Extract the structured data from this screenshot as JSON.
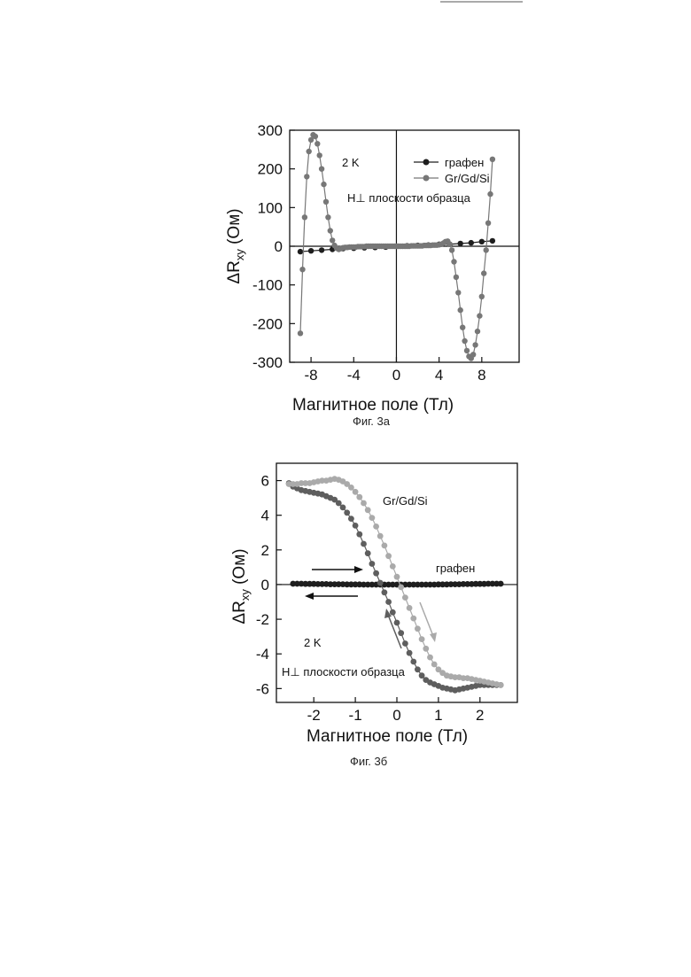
{
  "chart_data": [
    {
      "type": "line",
      "figure_label": "Фиг. 3а",
      "xlabel": "Магнитное поле (Тл)",
      "ylabel_main": "ΔR",
      "ylabel_sub": "xy",
      "ylabel_unit": " (Ом)",
      "xlim": [
        -10,
        11.5
      ],
      "ylim": [
        -300,
        300
      ],
      "xticks": [
        -8,
        -4,
        0,
        4,
        8
      ],
      "xtick_labels": [
        "-8",
        "-4",
        "0",
        "4",
        "8"
      ],
      "yticks": [
        -300,
        -200,
        -100,
        0,
        100,
        200,
        300
      ],
      "ytick_labels": [
        "-300",
        "-200",
        "-100",
        "0",
        "100",
        "200",
        "300"
      ],
      "annotations": [
        "2 K",
        "H⊥ плоскости образца"
      ],
      "legend_position": "top-right",
      "series": [
        {
          "name": "графен",
          "color": "#1e1e1e",
          "x": [
            -9,
            -8,
            -7,
            -6,
            -5,
            -4,
            -3,
            -2,
            -1,
            0,
            1,
            2,
            3,
            4,
            5,
            6,
            7,
            8,
            9
          ],
          "y": [
            -14,
            -12,
            -10,
            -8,
            -6,
            -5,
            -4,
            -3,
            -2,
            0,
            1,
            2,
            3,
            5,
            5,
            7,
            9,
            12,
            14
          ]
        },
        {
          "name": "Gr/Gd/Si",
          "color": "#777777",
          "x": [
            -9.0,
            -8.8,
            -8.6,
            -8.4,
            -8.2,
            -8.0,
            -7.8,
            -7.6,
            -7.4,
            -7.2,
            -7.0,
            -6.8,
            -6.6,
            -6.4,
            -6.2,
            -6.0,
            -5.8,
            -5.6,
            -5.4,
            -5.2,
            -5.0,
            -4.8,
            -4.6,
            -4.4,
            -4.2,
            -4.0,
            -3.8,
            -3.6,
            -3.4,
            -3.2,
            -3.0,
            -2.8,
            -2.6,
            -2.4,
            -2.2,
            -2.0,
            -1.8,
            -1.6,
            -1.4,
            -1.2,
            -1.0,
            -0.8,
            -0.6,
            -0.4,
            -0.2,
            0.0,
            0.2,
            0.4,
            0.6,
            0.8,
            1.0,
            1.2,
            1.4,
            1.6,
            1.8,
            2.0,
            2.2,
            2.4,
            2.6,
            2.8,
            3.0,
            3.2,
            3.4,
            3.6,
            3.8,
            4.0,
            4.2,
            4.4,
            4.6,
            4.8,
            5.0,
            5.2,
            5.4,
            5.6,
            5.8,
            6.0,
            6.2,
            6.4,
            6.6,
            6.8,
            7.0,
            7.2,
            7.4,
            7.6,
            7.8,
            8.0,
            8.2,
            8.4,
            8.6,
            8.8,
            9.0
          ],
          "y": [
            -225,
            -60,
            75,
            180,
            245,
            275,
            288,
            284,
            265,
            235,
            200,
            160,
            115,
            75,
            40,
            15,
            2,
            -5,
            -8,
            -6,
            -4,
            -3,
            -3,
            -2,
            -2,
            -2,
            -2,
            -1,
            -1,
            -1,
            -1,
            0,
            0,
            0,
            0,
            0,
            0,
            0,
            0,
            0,
            0,
            0,
            0,
            0,
            0,
            0,
            0,
            0,
            0,
            0,
            0,
            0,
            1,
            1,
            1,
            1,
            1,
            1,
            2,
            2,
            2,
            2,
            3,
            3,
            3,
            4,
            5,
            8,
            12,
            13,
            5,
            -10,
            -40,
            -80,
            -120,
            -165,
            -210,
            -245,
            -270,
            -285,
            -290,
            -280,
            -255,
            -220,
            -180,
            -130,
            -70,
            -10,
            60,
            135,
            225
          ]
        }
      ]
    },
    {
      "type": "line",
      "figure_label": "Фиг. 3б",
      "xlabel": "Магнитное поле (Тл)",
      "ylabel_main": "ΔR",
      "ylabel_sub": "xy",
      "ylabel_unit": " (Ом)",
      "xlim": [
        -2.9,
        2.9
      ],
      "ylim": [
        -6.8,
        7
      ],
      "xticks": [
        -2,
        -1,
        0,
        1,
        2
      ],
      "xtick_labels": [
        "-2",
        "-1",
        "0",
        "1",
        "2"
      ],
      "yticks": [
        -6,
        -4,
        -2,
        0,
        2,
        4,
        6
      ],
      "ytick_labels": [
        "-6",
        "-4",
        "-2",
        "0",
        "2",
        "4",
        "6"
      ],
      "annotations": [
        "Gr/Gd/Si",
        "графен",
        "2 K",
        "H⊥ плоскости образца"
      ],
      "series": [
        {
          "name": "графен",
          "color": "#1e1e1e",
          "x": [
            -2.5,
            -2.4,
            -2.3,
            -2.2,
            -2.1,
            -2.0,
            -1.9,
            -1.8,
            -1.7,
            -1.6,
            -1.5,
            -1.4,
            -1.3,
            -1.2,
            -1.1,
            -1.0,
            -0.9,
            -0.8,
            -0.7,
            -0.6,
            -0.5,
            -0.4,
            -0.3,
            -0.2,
            -0.1,
            0.0,
            0.1,
            0.2,
            0.3,
            0.4,
            0.5,
            0.6,
            0.7,
            0.8,
            0.9,
            1.0,
            1.1,
            1.2,
            1.3,
            1.4,
            1.5,
            1.6,
            1.7,
            1.8,
            1.9,
            2.0,
            2.1,
            2.2,
            2.3,
            2.4,
            2.5
          ],
          "y": [
            0.05,
            0.05,
            0.05,
            0.04,
            0.04,
            0.04,
            0.03,
            0.03,
            0.03,
            0.02,
            0.02,
            0.02,
            0.02,
            0.01,
            0.01,
            0.01,
            0.01,
            0.0,
            0.0,
            0.0,
            0.0,
            0.0,
            0.0,
            0.0,
            0.0,
            0.0,
            0.0,
            0.0,
            0.0,
            0.0,
            0.0,
            0.0,
            0.0,
            0.0,
            0.0,
            0.01,
            0.01,
            0.01,
            0.02,
            0.02,
            0.02,
            0.03,
            0.03,
            0.03,
            0.04,
            0.04,
            0.04,
            0.05,
            0.05,
            0.05,
            0.05
          ]
        },
        {
          "name": "Gr/Gd/Si (H ↓)",
          "color": "#5e5e5e",
          "x": [
            -2.6,
            -2.5,
            -2.4,
            -2.3,
            -2.2,
            -2.1,
            -2.0,
            -1.9,
            -1.8,
            -1.7,
            -1.6,
            -1.5,
            -1.4,
            -1.3,
            -1.2,
            -1.1,
            -1.0,
            -0.9,
            -0.8,
            -0.7,
            -0.6,
            -0.5,
            -0.4,
            -0.3,
            -0.2,
            -0.1,
            0.0,
            0.1,
            0.2,
            0.3,
            0.4,
            0.5,
            0.6,
            0.7,
            0.8,
            0.9,
            1.0,
            1.1,
            1.2,
            1.3,
            1.4,
            1.5,
            1.6,
            1.7,
            1.8,
            1.9,
            2.0,
            2.1,
            2.2,
            2.3,
            2.4,
            2.5
          ],
          "y": [
            5.85,
            5.65,
            5.55,
            5.45,
            5.4,
            5.35,
            5.3,
            5.25,
            5.2,
            5.1,
            5.0,
            4.9,
            4.7,
            4.45,
            4.15,
            3.8,
            3.4,
            2.9,
            2.35,
            1.8,
            1.2,
            0.65,
            0.1,
            -0.45,
            -1.0,
            -1.6,
            -2.2,
            -2.8,
            -3.4,
            -3.95,
            -4.45,
            -4.9,
            -5.25,
            -5.5,
            -5.65,
            -5.75,
            -5.85,
            -5.95,
            -6.0,
            -6.05,
            -6.1,
            -6.05,
            -6.0,
            -5.95,
            -5.9,
            -5.85,
            -5.8,
            -5.8,
            -5.8,
            -5.8,
            -5.8,
            -5.8
          ]
        },
        {
          "name": "Gr/Gd/Si (H ↑)",
          "color": "#aaaaaa",
          "x": [
            -2.6,
            -2.5,
            -2.4,
            -2.3,
            -2.2,
            -2.1,
            -2.0,
            -1.9,
            -1.8,
            -1.7,
            -1.6,
            -1.5,
            -1.4,
            -1.3,
            -1.2,
            -1.1,
            -1.0,
            -0.9,
            -0.8,
            -0.7,
            -0.6,
            -0.5,
            -0.4,
            -0.3,
            -0.2,
            -0.1,
            0.0,
            0.1,
            0.2,
            0.3,
            0.4,
            0.5,
            0.6,
            0.7,
            0.8,
            0.9,
            1.0,
            1.1,
            1.2,
            1.3,
            1.4,
            1.5,
            1.6,
            1.7,
            1.8,
            1.9,
            2.0,
            2.1,
            2.2,
            2.3,
            2.4,
            2.5
          ],
          "y": [
            5.8,
            5.8,
            5.8,
            5.85,
            5.85,
            5.85,
            5.9,
            5.95,
            6.0,
            6.0,
            6.05,
            6.1,
            6.05,
            5.95,
            5.8,
            5.6,
            5.35,
            5.05,
            4.7,
            4.3,
            3.85,
            3.35,
            2.8,
            2.25,
            1.65,
            1.05,
            0.45,
            -0.15,
            -0.75,
            -1.35,
            -1.95,
            -2.55,
            -3.15,
            -3.7,
            -4.2,
            -4.6,
            -4.9,
            -5.1,
            -5.25,
            -5.3,
            -5.35,
            -5.35,
            -5.4,
            -5.4,
            -5.45,
            -5.5,
            -5.55,
            -5.6,
            -5.65,
            -5.7,
            -5.75,
            -5.8
          ]
        }
      ]
    }
  ]
}
